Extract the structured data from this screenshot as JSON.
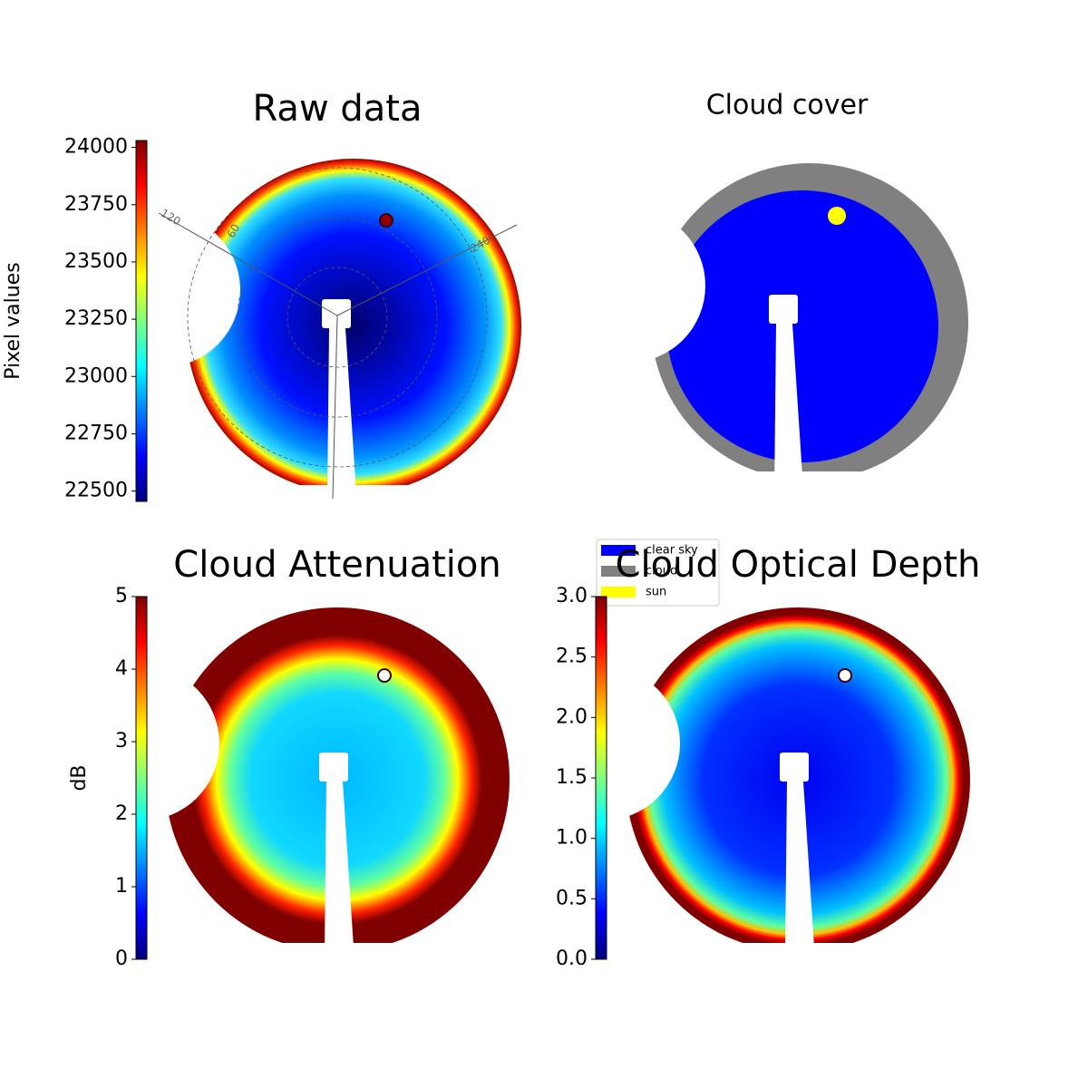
{
  "chart_data": [
    {
      "type": "image",
      "title": "Raw data",
      "colormap": "jet",
      "colorbar_label": "Pixel values",
      "ylim": [
        22455,
        24030
      ],
      "yticks": [
        22500,
        22750,
        23000,
        23250,
        23500,
        23750,
        24000
      ],
      "annotations": [
        "120",
        "60",
        "240"
      ]
    },
    {
      "type": "image",
      "title": "Cloud cover",
      "legend": [
        {
          "name": "clear sky",
          "color": "#0000ff"
        },
        {
          "name": "cloud",
          "color": "#808080"
        },
        {
          "name": "sun",
          "color": "#ffff00"
        }
      ]
    },
    {
      "type": "image",
      "title": "Cloud Attenuation",
      "colormap": "jet",
      "colorbar_label": "dB",
      "ylim": [
        0,
        5
      ],
      "yticks": [
        0,
        1,
        2,
        3,
        4,
        5
      ]
    },
    {
      "type": "image",
      "title": "Cloud Optical Depth",
      "colormap": "jet",
      "ylim": [
        0,
        3
      ],
      "yticks": [
        {
          "value": 0,
          "label": "0.0"
        },
        {
          "value": 0.5,
          "label": "0.5"
        },
        {
          "value": 1,
          "label": "1.0"
        },
        {
          "value": 1.5,
          "label": "1.5"
        },
        {
          "value": 2,
          "label": "2.0"
        },
        {
          "value": 2.5,
          "label": "2.5"
        },
        {
          "value": 3,
          "label": "3.0"
        }
      ]
    }
  ]
}
